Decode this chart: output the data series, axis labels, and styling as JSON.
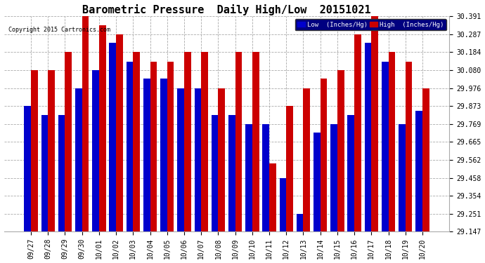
{
  "title": "Barometric Pressure  Daily High/Low  20151021",
  "copyright": "Copyright 2015 Cartronics.com",
  "legend_low": "Low  (Inches/Hg)",
  "legend_high": "High  (Inches/Hg)",
  "dates": [
    "09/27",
    "09/28",
    "09/29",
    "09/30",
    "10/01",
    "10/02",
    "10/03",
    "10/04",
    "10/05",
    "10/06",
    "10/07",
    "10/08",
    "10/09",
    "10/10",
    "10/11",
    "10/12",
    "10/13",
    "10/14",
    "10/15",
    "10/16",
    "10/17",
    "10/18",
    "10/19",
    "10/20"
  ],
  "low_values": [
    29.873,
    29.82,
    29.82,
    29.976,
    30.08,
    30.236,
    30.13,
    30.03,
    30.03,
    29.976,
    29.976,
    29.82,
    29.82,
    29.769,
    29.769,
    29.458,
    29.251,
    29.719,
    29.769,
    29.82,
    30.236,
    30.13,
    29.769,
    29.847
  ],
  "high_values": [
    30.08,
    30.08,
    30.184,
    30.391,
    30.34,
    30.287,
    30.184,
    30.13,
    30.13,
    30.184,
    30.184,
    29.976,
    30.184,
    30.184,
    29.54,
    29.873,
    29.976,
    30.03,
    30.08,
    30.287,
    30.391,
    30.184,
    30.13,
    29.976
  ],
  "ylim_min": 29.147,
  "ylim_max": 30.391,
  "yticks": [
    29.147,
    29.251,
    29.354,
    29.458,
    29.562,
    29.665,
    29.769,
    29.873,
    29.976,
    30.08,
    30.184,
    30.287,
    30.391
  ],
  "bar_color_low": "#0000cc",
  "bar_color_high": "#cc0000",
  "bg_color": "#ffffff",
  "grid_color": "#aaaaaa",
  "title_fontsize": 11,
  "tick_fontsize": 7
}
